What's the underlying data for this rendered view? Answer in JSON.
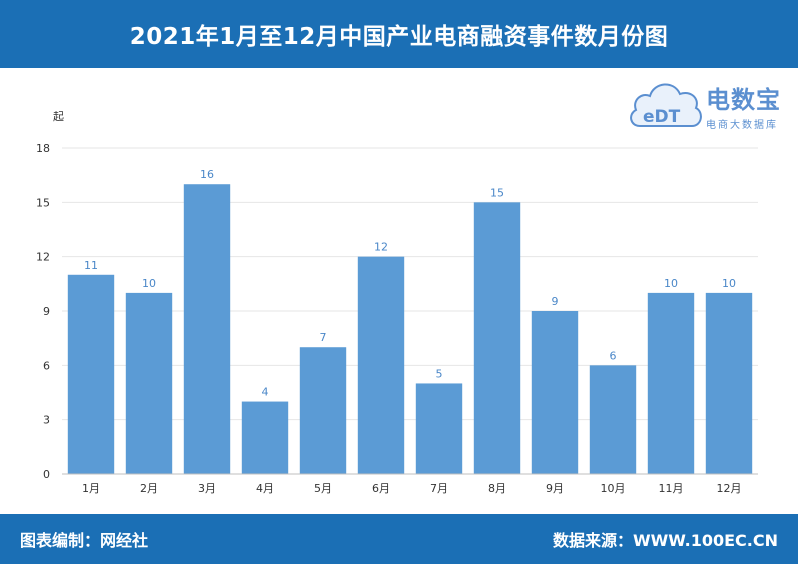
{
  "header": {
    "title": "2021年1月至12月中国产业电商融资事件数月份图"
  },
  "footer": {
    "left": "图表编制：网经社",
    "right": "数据来源：WWW.100EC.CN"
  },
  "logo": {
    "name": "电数宝",
    "subtitle": "电商大数据库",
    "mark_text": "eDT"
  },
  "colors": {
    "brand": "#1b6fb5",
    "bar": "#5b9bd5",
    "label": "#4a87c8",
    "logo": "#5b8fd0"
  },
  "chart_data": {
    "type": "bar",
    "title": "2021年1月至12月中国产业电商融资事件数月份图",
    "ylabel": "起",
    "xlabel": "",
    "categories": [
      "1月",
      "2月",
      "3月",
      "4月",
      "5月",
      "6月",
      "7月",
      "8月",
      "9月",
      "10月",
      "11月",
      "12月"
    ],
    "values": [
      11,
      10,
      16,
      4,
      7,
      12,
      5,
      15,
      9,
      6,
      10,
      10
    ],
    "ylim": [
      0,
      18
    ],
    "yticks": [
      0,
      3,
      6,
      9,
      12,
      15,
      18
    ],
    "grid": true,
    "legend": "none",
    "data_labels": true
  }
}
